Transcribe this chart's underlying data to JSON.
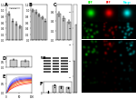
{
  "bg_color": "#ffffff",
  "panel_A": {
    "bars": [
      0.9,
      0.65,
      0.55,
      0.45
    ],
    "bar_colors": [
      "#c8c8c8",
      "#c8c8c8",
      "#c8c8c8",
      "#c8c8c8"
    ],
    "yerr": [
      0.06,
      0.05,
      0.05,
      0.04
    ],
    "ylim": [
      0,
      1.2
    ]
  },
  "panel_B": {
    "bars": [
      1.0,
      0.95,
      0.85,
      0.75,
      0.65
    ],
    "bar_colors": [
      "#c8c8c8",
      "#c8c8c8",
      "#c8c8c8",
      "#c8c8c8",
      "#c8c8c8"
    ],
    "yerr": [
      0.05,
      0.05,
      0.05,
      0.05,
      0.05
    ],
    "ylim": [
      0,
      1.2
    ]
  },
  "panel_C": {
    "bars": [
      0.55,
      0.45,
      0.38
    ],
    "bar_colors": [
      "#c8c8c8",
      "#c8c8c8",
      "#c8c8c8"
    ],
    "yerr": [
      0.05,
      0.04,
      0.04
    ],
    "ylim": [
      0,
      0.75
    ]
  },
  "panel_D_bar": {
    "bars": [
      0.65,
      0.55
    ],
    "bar_colors": [
      "#c8c8c8",
      "#c8c8c8"
    ],
    "yerr": [
      0.05,
      0.05
    ],
    "ylim": [
      0,
      0.9
    ]
  },
  "panel_E_colors": [
    "#ff1100",
    "#ff4400",
    "#ff8800",
    "#cc0000",
    "#aa0000",
    "#0000ee",
    "#4444ff",
    "#8888ff",
    "#aaaacc"
  ],
  "panel_F_bars": [
    0.05,
    0.75,
    0.6,
    0.5
  ],
  "panel_F_colors": [
    "#ffffff",
    "#c8c8c8",
    "#c8c8c8",
    "#c8c8c8"
  ],
  "fluor_grid": {
    "rows": 5,
    "cols": 3,
    "row_colors": [
      [
        "#00ff00",
        "#ff0000",
        "#00ffff"
      ],
      [
        "#00cc00",
        "#aa0000",
        "#00cccc"
      ],
      [
        "#009900",
        "#880000",
        "#009999"
      ],
      [
        "#006600",
        "#660000",
        "#006666"
      ],
      [
        "#004400",
        "#440000",
        "#004444"
      ]
    ]
  }
}
